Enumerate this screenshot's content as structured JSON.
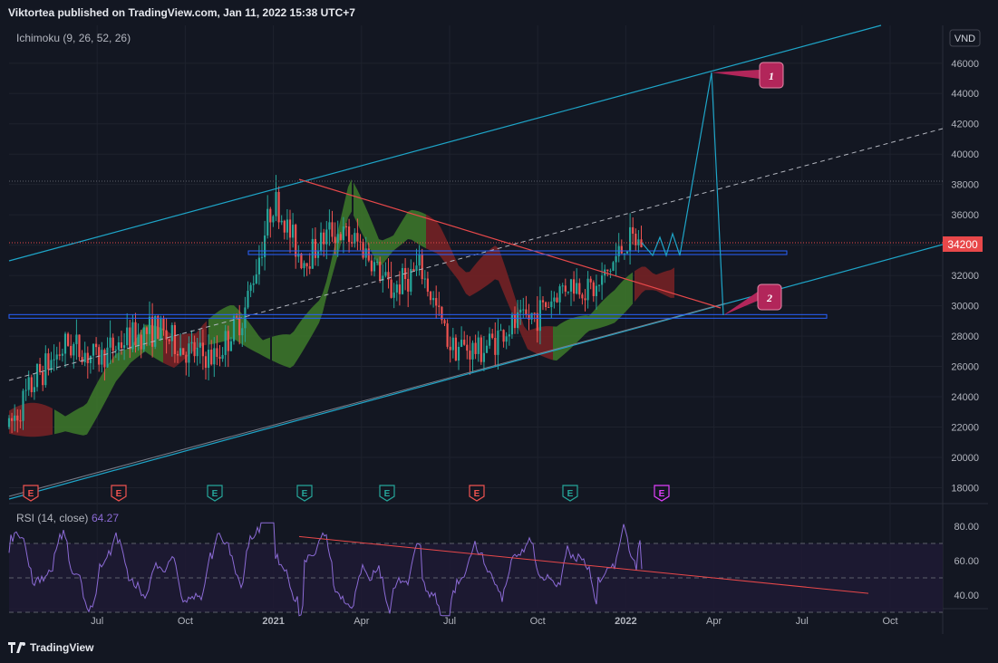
{
  "header": {
    "published": "Viktortea published on TradingView.com, Jan 11, 2022 15:38 UTC+7"
  },
  "footer": {
    "brand": "TradingView"
  },
  "indicator": {
    "label": "Ichimoku (9, 26, 52, 26)"
  },
  "currency": "VND",
  "rsi": {
    "label": "RSI (14, close)",
    "value": "64.27"
  },
  "price_marker": "34200",
  "colors": {
    "background": "#131722",
    "grid": "#1e222d",
    "channel": "#1ea5c8",
    "trend": "#e8484a",
    "up": "#26a69a",
    "down": "#ef5350",
    "cloud_green": "#3e7a2a",
    "cloud_red": "#7a2224",
    "level": "#2962ff",
    "rsi": "#8c6bd6",
    "callout": "#b2265a"
  },
  "chart_data": [
    {
      "type": "candlestick",
      "title": "",
      "x_ticks": [
        "Jul",
        "Oct",
        "2021",
        "Apr",
        "Jul",
        "Oct",
        "2022",
        "Apr",
        "Jul",
        "Oct"
      ],
      "y_ticks": [
        "18000",
        "20000",
        "22000",
        "24000",
        "26000",
        "28000",
        "30000",
        "32000",
        "34000",
        "36000",
        "38000",
        "40000",
        "42000",
        "44000",
        "46000"
      ],
      "ylim": [
        17000,
        48000
      ],
      "x_range": [
        "2020-04",
        "2022-12"
      ],
      "approx_close_path": [
        [
          "2020-04",
          22000
        ],
        [
          "2020-05",
          25500
        ],
        [
          "2020-06",
          27500
        ],
        [
          "2020-07",
          26500
        ],
        [
          "2020-08",
          27800
        ],
        [
          "2020-09",
          28500
        ],
        [
          "2020-10",
          27000
        ],
        [
          "2020-11",
          26500
        ],
        [
          "2020-12",
          29500
        ],
        [
          "2021-01",
          37000
        ],
        [
          "2021-02",
          33000
        ],
        [
          "2021-03",
          35000
        ],
        [
          "2021-04",
          34000
        ],
        [
          "2021-05",
          31000
        ],
        [
          "2021-06",
          32500
        ],
        [
          "2021-07",
          27500
        ],
        [
          "2021-08",
          27000
        ],
        [
          "2021-09",
          28500
        ],
        [
          "2021-10",
          29500
        ],
        [
          "2021-11",
          31500
        ],
        [
          "2021-12",
          31000
        ],
        [
          "2022-01",
          34200
        ]
      ],
      "levels": [
        33500,
        29300
      ],
      "projection_path": [
        [
          "2022-01",
          34200
        ],
        [
          "2022-03",
          45400
        ],
        [
          "2022-04",
          29400
        ]
      ],
      "callouts": [
        {
          "label": "1",
          "value": 45400
        },
        {
          "label": "2",
          "value": 29400
        }
      ],
      "events": [
        "E",
        "E",
        "E",
        "E",
        "E",
        "E",
        "E",
        "E"
      ]
    },
    {
      "type": "line",
      "title": "RSI (14, close)",
      "y_ticks": [
        "40.00",
        "60.00",
        "80.00"
      ],
      "ylim": [
        27,
        82
      ],
      "bands": [
        30,
        50,
        70
      ],
      "last_value": 64.27
    }
  ]
}
